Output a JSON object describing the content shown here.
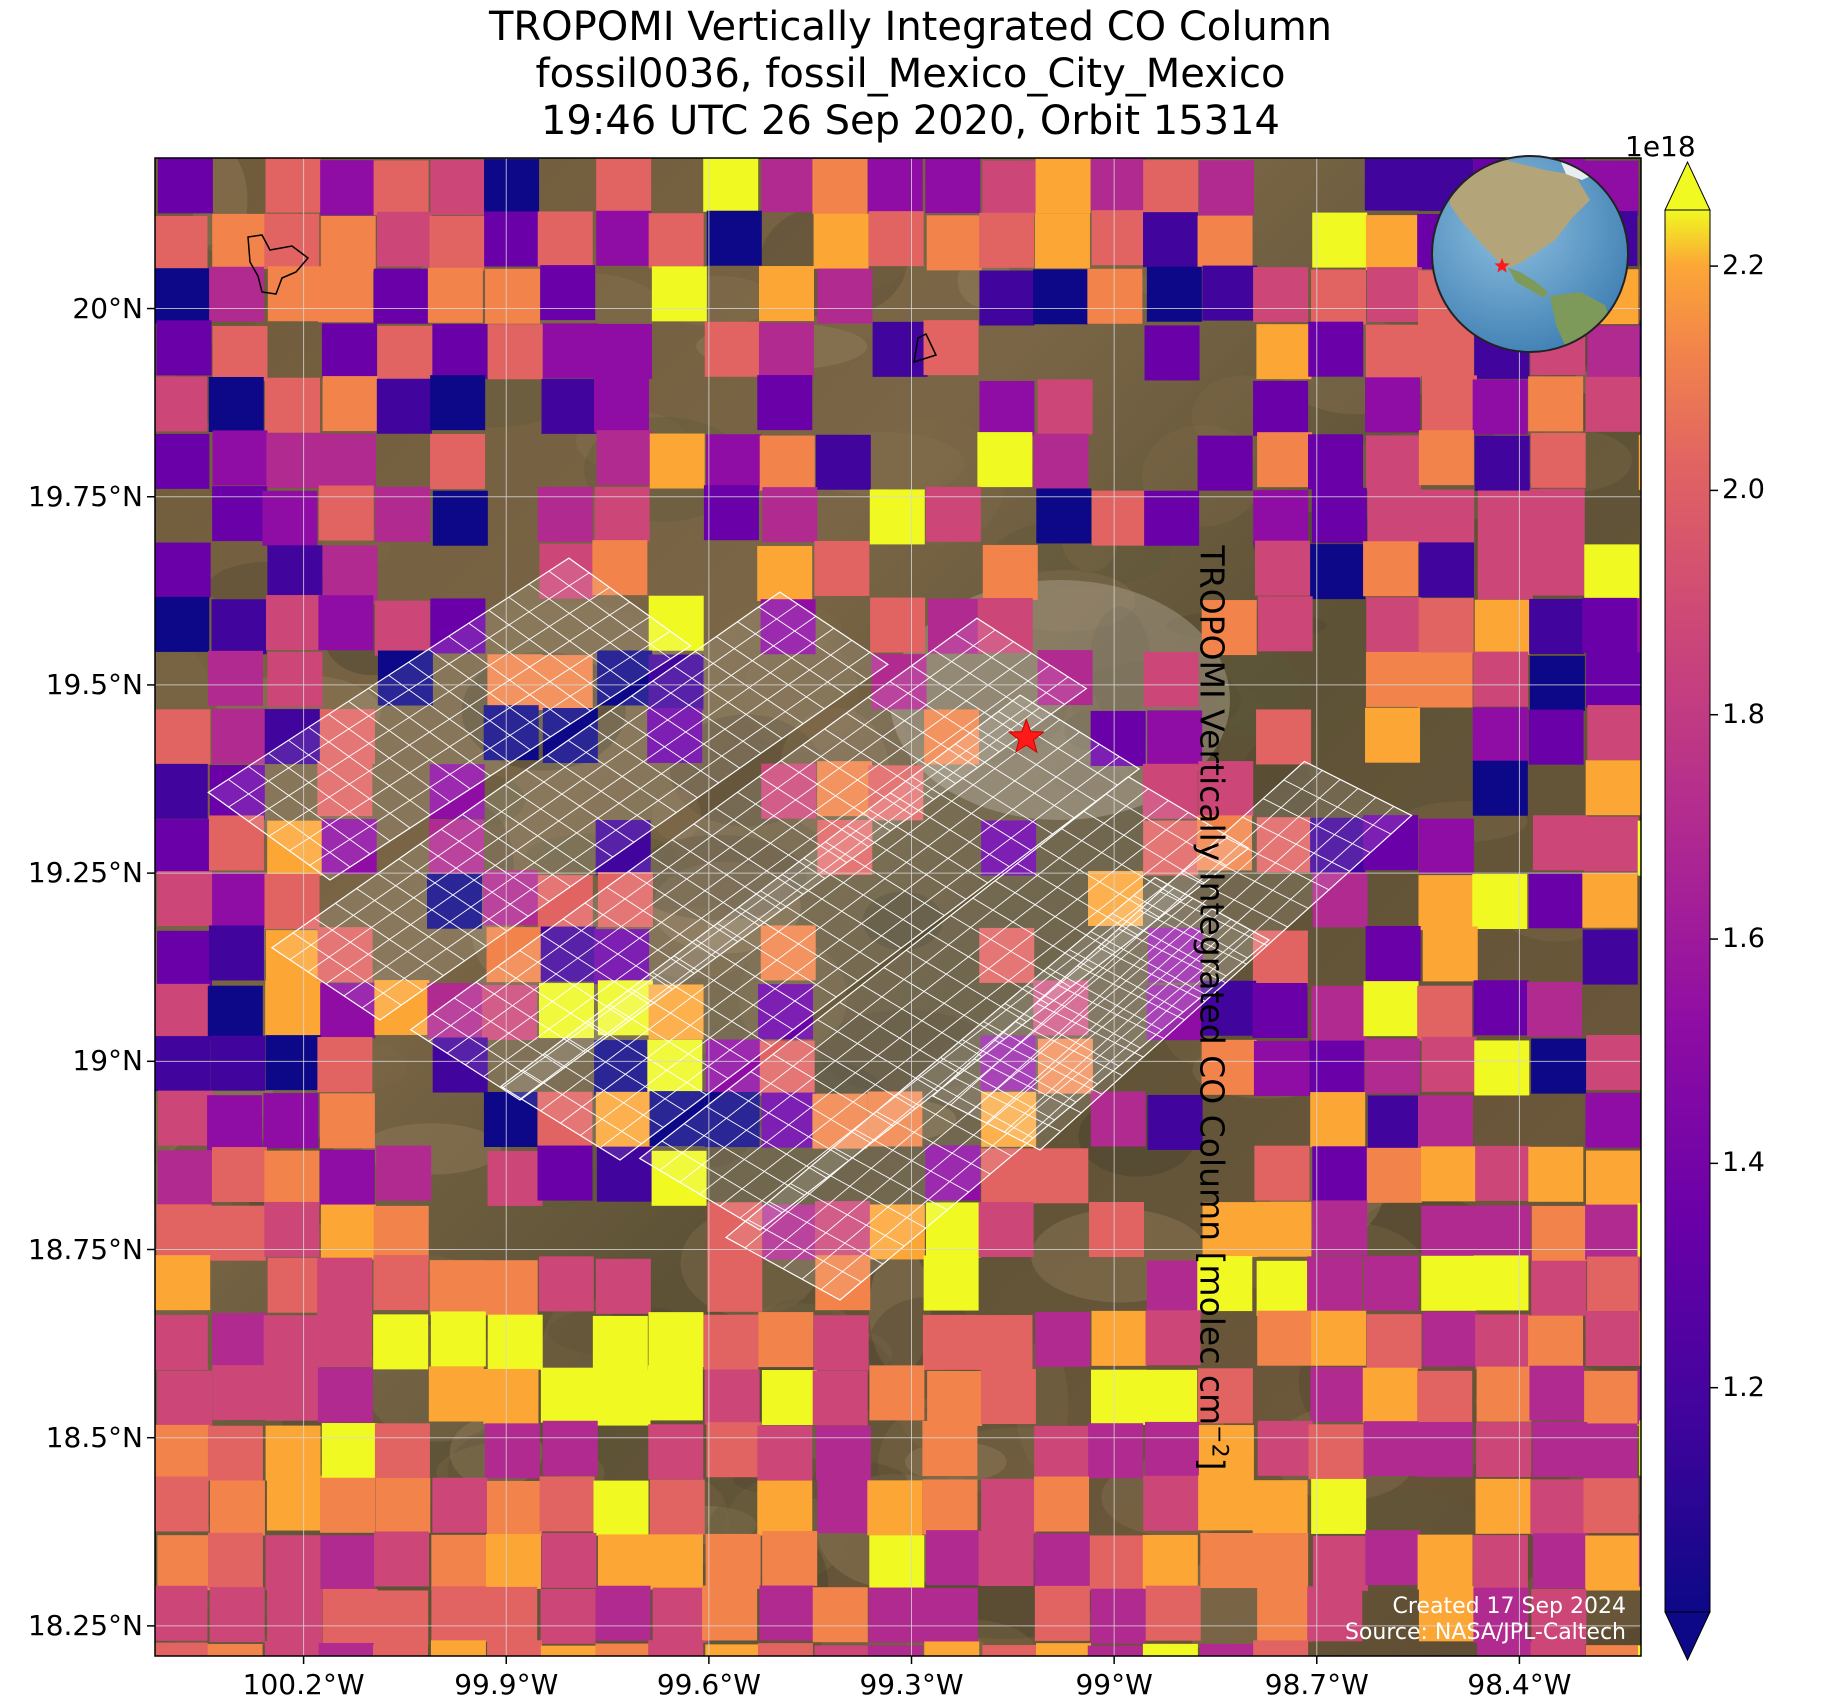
{
  "title": {
    "line1": "TROPOMI Vertically Integrated CO Column",
    "line2": "fossil0036, fossil_Mexico_City_Mexico",
    "line3": "19:46 UTC 26 Sep 2020, Orbit 15314"
  },
  "axes": {
    "x_ticks": [
      "100.2°W",
      "99.9°W",
      "99.6°W",
      "99.3°W",
      "99°W",
      "98.7°W",
      "98.4°W"
    ],
    "x_tick_values": [
      -100.2,
      -99.9,
      -99.6,
      -99.3,
      -99.0,
      -98.7,
      -98.4
    ],
    "y_ticks": [
      "20°N",
      "19.75°N",
      "19.5°N",
      "19.25°N",
      "19°N",
      "18.75°N",
      "18.5°N",
      "18.25°N"
    ],
    "y_tick_values": [
      20.0,
      19.75,
      19.5,
      19.25,
      19.0,
      18.75,
      18.5,
      18.25
    ],
    "lon_range": [
      -100.42,
      -98.22
    ],
    "lat_range": [
      18.21,
      20.2
    ],
    "grid": true
  },
  "colorbar": {
    "exponent": "1e18",
    "ticks": [
      "1.2",
      "1.4",
      "1.6",
      "1.8",
      "2.0",
      "2.2"
    ],
    "tick_values": [
      1.2,
      1.4,
      1.6,
      1.8,
      2.0,
      2.2
    ],
    "range": [
      1.0,
      2.25
    ],
    "title": "TROPOMI Vertically Integrated CO Column [molec cm",
    "title_sup": "−2",
    "title_end": "]",
    "colormap": "plasma"
  },
  "target": {
    "lon": -99.13,
    "lat": 19.43,
    "marker": "red-star"
  },
  "credits": {
    "created": "Created 17 Sep 2024",
    "source": "Source: NASA/JPL-Caltech"
  },
  "inset": {
    "type": "globe",
    "marker": "red-star"
  },
  "colors": {
    "terrain": "#6b5a3c",
    "grid": "#d8d8d8",
    "footprint_outline": "#ffffff",
    "marker": "#ff1a1a"
  }
}
